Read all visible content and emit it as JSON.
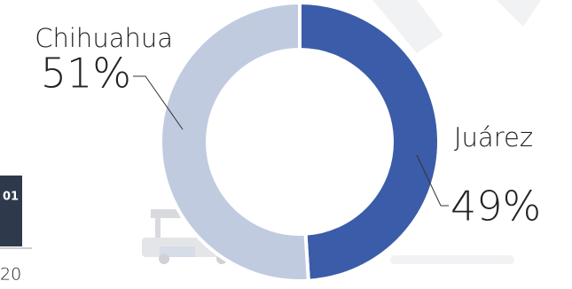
{
  "chart_data": {
    "type": "donut",
    "categories": [
      "Juárez",
      "Chihuahua"
    ],
    "values": [
      49,
      51
    ],
    "value_labels": [
      "49%",
      "51%"
    ],
    "colors": [
      "#3b5ca8",
      "#c0cbe0"
    ]
  },
  "side_panel": {
    "badge": "01",
    "axis_label": "20"
  }
}
